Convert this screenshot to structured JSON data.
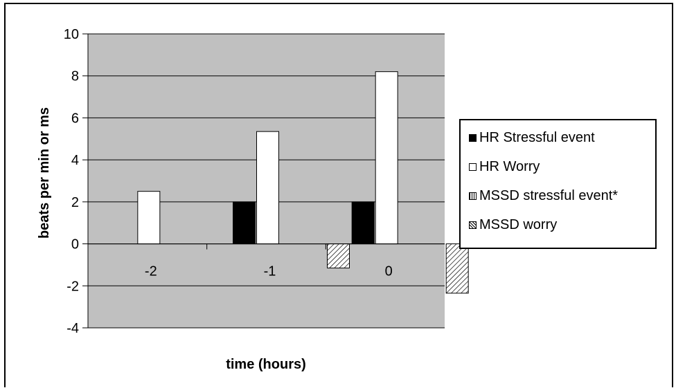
{
  "chart_data": {
    "type": "bar",
    "categories": [
      "-2",
      "-1",
      "0"
    ],
    "xlabel": "time (hours)",
    "ylabel": "beats per min or ms",
    "ylim": [
      -4,
      10
    ],
    "yticks": [
      "10",
      "8",
      "6",
      "4",
      "2",
      "0",
      "-2",
      "-4"
    ],
    "grid": true,
    "legend_position": "right",
    "series": [
      {
        "name": "HR Stressful event",
        "values": [
          0,
          2,
          2
        ],
        "fill": "#000000",
        "pattern": "solid"
      },
      {
        "name": "HR Worry",
        "values": [
          2.5,
          5.35,
          8.2
        ],
        "fill": "#ffffff",
        "pattern": "solid"
      },
      {
        "name": "MSSD stressful event*",
        "values": [
          0,
          0,
          0
        ],
        "fill": "#ffffff",
        "pattern": "vertical"
      },
      {
        "name": "MSSD worry",
        "values": [
          0,
          -1.15,
          -2.35
        ],
        "fill": "#ffffff",
        "pattern": "diagonal"
      }
    ],
    "plot_background": "#c0c0c0"
  }
}
